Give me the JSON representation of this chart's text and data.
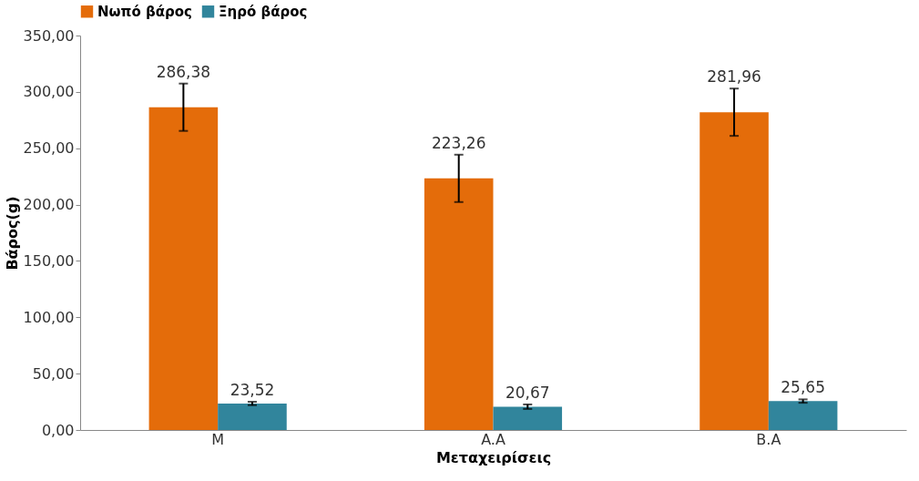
{
  "chart_data": {
    "type": "bar",
    "xlabel": "Μεταχειρίσεις",
    "ylabel": "Βάρος(g)",
    "categories": [
      "M",
      "A.A",
      "B.A"
    ],
    "series": [
      {
        "name": "Νωπό βάρος",
        "color": "#e46c0a",
        "values": [
          286.38,
          223.26,
          281.96
        ],
        "errors": [
          21,
          21,
          21
        ],
        "value_labels": [
          "286,38",
          "223,26",
          "281,96"
        ]
      },
      {
        "name": "Ξηρό βάρος",
        "color": "#31859c",
        "values": [
          23.52,
          20.67,
          25.65
        ],
        "errors": [
          1.5,
          2,
          1.5
        ],
        "value_labels": [
          "23,52",
          "20,67",
          "25,65"
        ]
      }
    ],
    "ylim": [
      0,
      350
    ],
    "yticks": [
      {
        "value": 0,
        "label": "0,00"
      },
      {
        "value": 50,
        "label": "50,00"
      },
      {
        "value": 100,
        "label": "100,00"
      },
      {
        "value": 150,
        "label": "150,00"
      },
      {
        "value": 200,
        "label": "200,00"
      },
      {
        "value": 250,
        "label": "250,00"
      },
      {
        "value": 300,
        "label": "300,00"
      },
      {
        "value": 350,
        "label": "350,00"
      }
    ],
    "grid": false,
    "legend": "top"
  }
}
